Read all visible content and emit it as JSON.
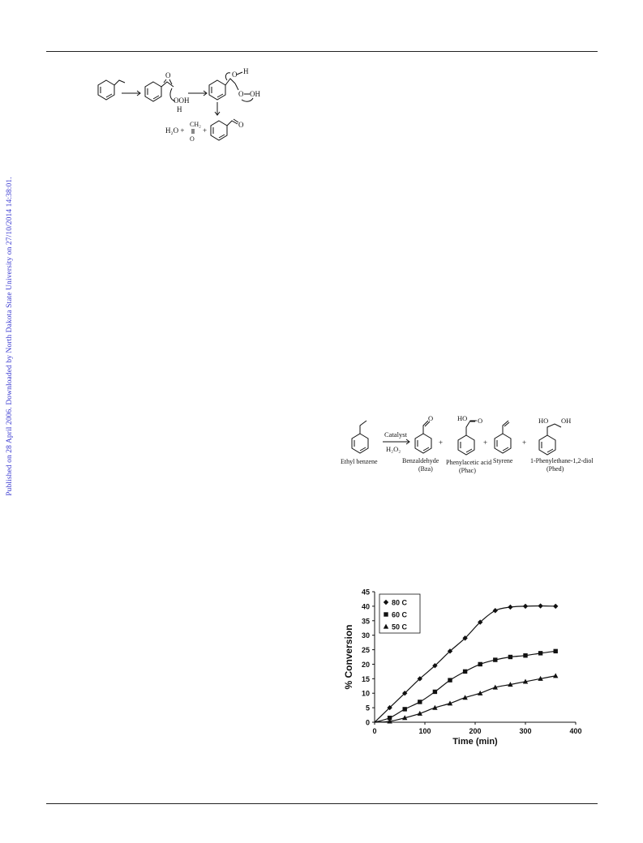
{
  "side_note": "Published on 28 April 2006. Downloaded by North Dakota State University on 27/10/2014 14:38:01.",
  "scheme_mechanism": {
    "atoms": {
      "O": "O",
      "H": "H",
      "OOH": "OOH",
      "OH": "OH",
      "O_H": "O",
      "H_top": "H",
      "O_peroxide": "O",
      "OH_peroxide": "OH"
    },
    "products_left": "H₂O + ",
    "products_ch2": "CH₂",
    "products_o": "O",
    "products_plus": "+"
  },
  "scheme_reaction": {
    "reactant": "Ethyl benzene",
    "arrow_top": "Catalyst",
    "arrow_bottom": "H₂O₂",
    "products": [
      {
        "name": "Benzaldehyde",
        "abbr": "(Bza)"
      },
      {
        "name": "Phenylacetic acid",
        "abbr": "(Phac)"
      },
      {
        "name": "Styrene",
        "abbr": ""
      },
      {
        "name": "1-Phenylethane-1,2-diol",
        "abbr": "(Phed)"
      }
    ],
    "plus": "+",
    "atom_O": "O",
    "atom_HO": "HO",
    "atom_OH": "OH"
  },
  "chart_data": {
    "type": "scatter",
    "title": "",
    "xlabel": "Time (min)",
    "ylabel": "% Conversion",
    "xlim": [
      0,
      400
    ],
    "ylim": [
      0,
      45
    ],
    "xticks": [
      0,
      100,
      200,
      300,
      400
    ],
    "yticks": [
      0,
      5,
      10,
      15,
      20,
      25,
      30,
      35,
      40,
      45
    ],
    "grid": false,
    "legend_position": "top-left",
    "series": [
      {
        "name": "80 C",
        "marker": "diamond",
        "x": [
          0,
          30,
          60,
          90,
          120,
          150,
          180,
          210,
          240,
          270,
          300,
          330,
          360
        ],
        "y": [
          0,
          5,
          10,
          15,
          19.5,
          24.5,
          29,
          34.5,
          38.5,
          39.7,
          40,
          40.1,
          40
        ]
      },
      {
        "name": "60 C",
        "marker": "square",
        "x": [
          0,
          30,
          60,
          90,
          120,
          150,
          180,
          210,
          240,
          270,
          300,
          330,
          360
        ],
        "y": [
          0,
          1.5,
          4.5,
          7,
          10.5,
          14.5,
          17.5,
          20,
          21.5,
          22.5,
          23,
          23.8,
          24.5
        ]
      },
      {
        "name": "50 C",
        "marker": "triangle",
        "x": [
          0,
          30,
          60,
          90,
          120,
          150,
          180,
          210,
          240,
          270,
          300,
          330,
          360
        ],
        "y": [
          0,
          0.3,
          1.5,
          3,
          5,
          6.5,
          8.5,
          10,
          12,
          13,
          14,
          15,
          16
        ]
      }
    ]
  }
}
